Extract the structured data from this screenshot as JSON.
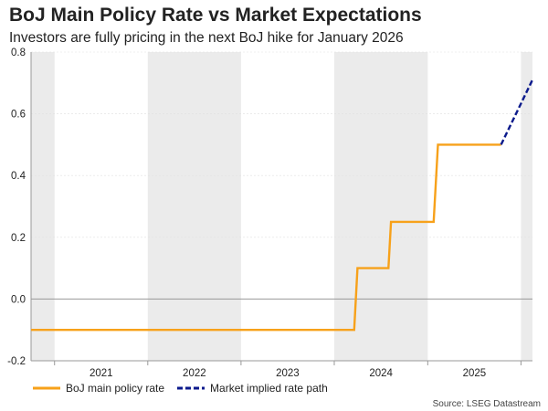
{
  "header": {
    "title": "BoJ Main Policy Rate vs Market Expectations",
    "subtitle": "Investors are fully pricing in the next BoJ hike for January 2026"
  },
  "source": "Source: LSEG Datastream",
  "colors": {
    "policy_rate": "#F7A11A",
    "market_path": "#0B1A8C",
    "shading": "#EBEBEB",
    "zero_line": "#999999",
    "grid": "#E0E0E0"
  },
  "chart_data": {
    "type": "line",
    "title": "BoJ Main Policy Rate vs Market Expectations",
    "subtitle": "Investors are fully pricing in the next BoJ hike for January 2026",
    "xlabel": "",
    "ylabel": "",
    "ylim": [
      -0.2,
      0.8
    ],
    "yticks": [
      -0.2,
      0.0,
      0.2,
      0.4,
      0.6,
      0.8
    ],
    "ytick_labels": [
      "-0.2",
      "0.0",
      "0.2",
      "0.4",
      "0.6",
      "0.8"
    ],
    "xlim": [
      "2020-10-01",
      "2026-02-15"
    ],
    "xtick_labels": [
      "2021",
      "2022",
      "2023",
      "2024",
      "2025"
    ],
    "year_bands": [
      {
        "start": "2020-10-01",
        "end": "2021-01-01",
        "shaded": true
      },
      {
        "start": "2021-01-01",
        "end": "2022-01-01",
        "shaded": false
      },
      {
        "start": "2022-01-01",
        "end": "2023-01-01",
        "shaded": true
      },
      {
        "start": "2023-01-01",
        "end": "2024-01-01",
        "shaded": false
      },
      {
        "start": "2024-01-01",
        "end": "2025-01-01",
        "shaded": true
      },
      {
        "start": "2025-01-01",
        "end": "2026-01-01",
        "shaded": false
      },
      {
        "start": "2026-01-01",
        "end": "2026-02-15",
        "shaded": true
      }
    ],
    "grid": false,
    "legend": "bottom-left",
    "series": [
      {
        "name": "BoJ main policy rate",
        "style": "solid",
        "points": [
          {
            "x": "2020-10-01",
            "y": -0.1
          },
          {
            "x": "2024-03-19",
            "y": -0.1
          },
          {
            "x": "2024-04-01",
            "y": 0.1
          },
          {
            "x": "2024-07-31",
            "y": 0.1
          },
          {
            "x": "2024-08-10",
            "y": 0.25
          },
          {
            "x": "2025-01-24",
            "y": 0.25
          },
          {
            "x": "2025-02-10",
            "y": 0.5
          },
          {
            "x": "2025-10-15",
            "y": 0.5
          }
        ]
      },
      {
        "name": "Market implied rate path",
        "style": "dashed",
        "points": [
          {
            "x": "2025-10-15",
            "y": 0.5
          },
          {
            "x": "2026-02-15",
            "y": 0.71
          }
        ]
      }
    ]
  }
}
